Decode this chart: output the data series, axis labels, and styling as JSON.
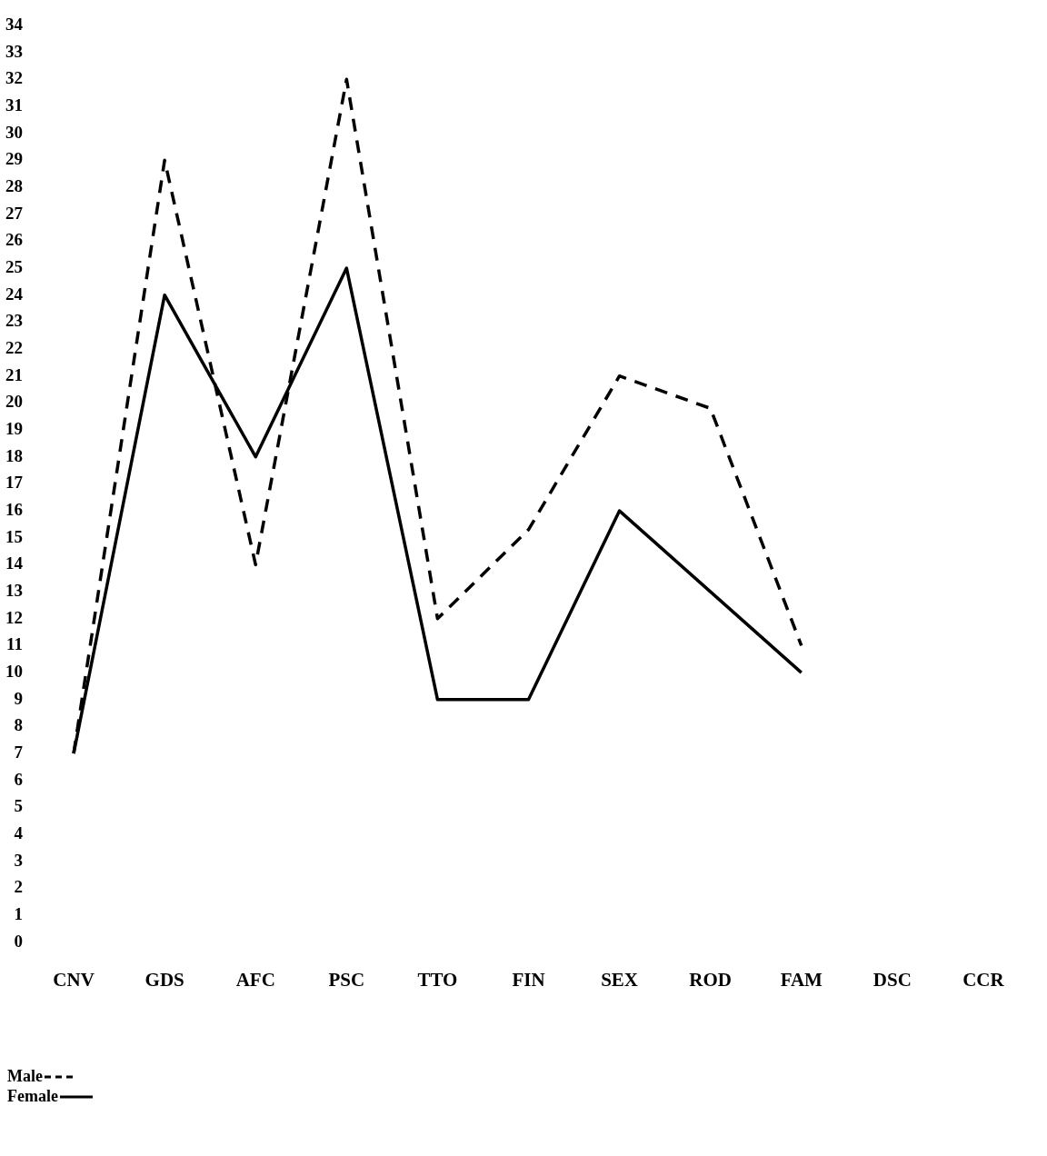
{
  "chart_data": {
    "type": "line",
    "categories": [
      "CNV",
      "GDS",
      "AFC",
      "PSC",
      "TTO",
      "FIN",
      "SEX",
      "ROD",
      "FAM",
      "DSC",
      "CCR"
    ],
    "series": [
      {
        "name": "Male",
        "color": "#000000",
        "line_style": "dashed",
        "values": [
          7,
          29,
          14,
          32,
          12,
          15.3,
          21,
          19.8,
          11,
          null,
          null
        ]
      },
      {
        "name": "Female",
        "color": "#000000",
        "line_style": "solid",
        "values": [
          7,
          24,
          18,
          25,
          9,
          9,
          16,
          13,
          10,
          null,
          null
        ]
      }
    ],
    "ylim": [
      0,
      34
    ],
    "yticks": [
      0,
      1,
      2,
      3,
      4,
      5,
      6,
      7,
      8,
      9,
      10,
      11,
      12,
      13,
      14,
      15,
      16,
      17,
      18,
      19,
      20,
      21,
      22,
      23,
      24,
      25,
      26,
      27,
      28,
      29,
      30,
      31,
      32,
      33,
      34
    ],
    "grid": false,
    "legend": "bottom left",
    "marker": "none"
  }
}
